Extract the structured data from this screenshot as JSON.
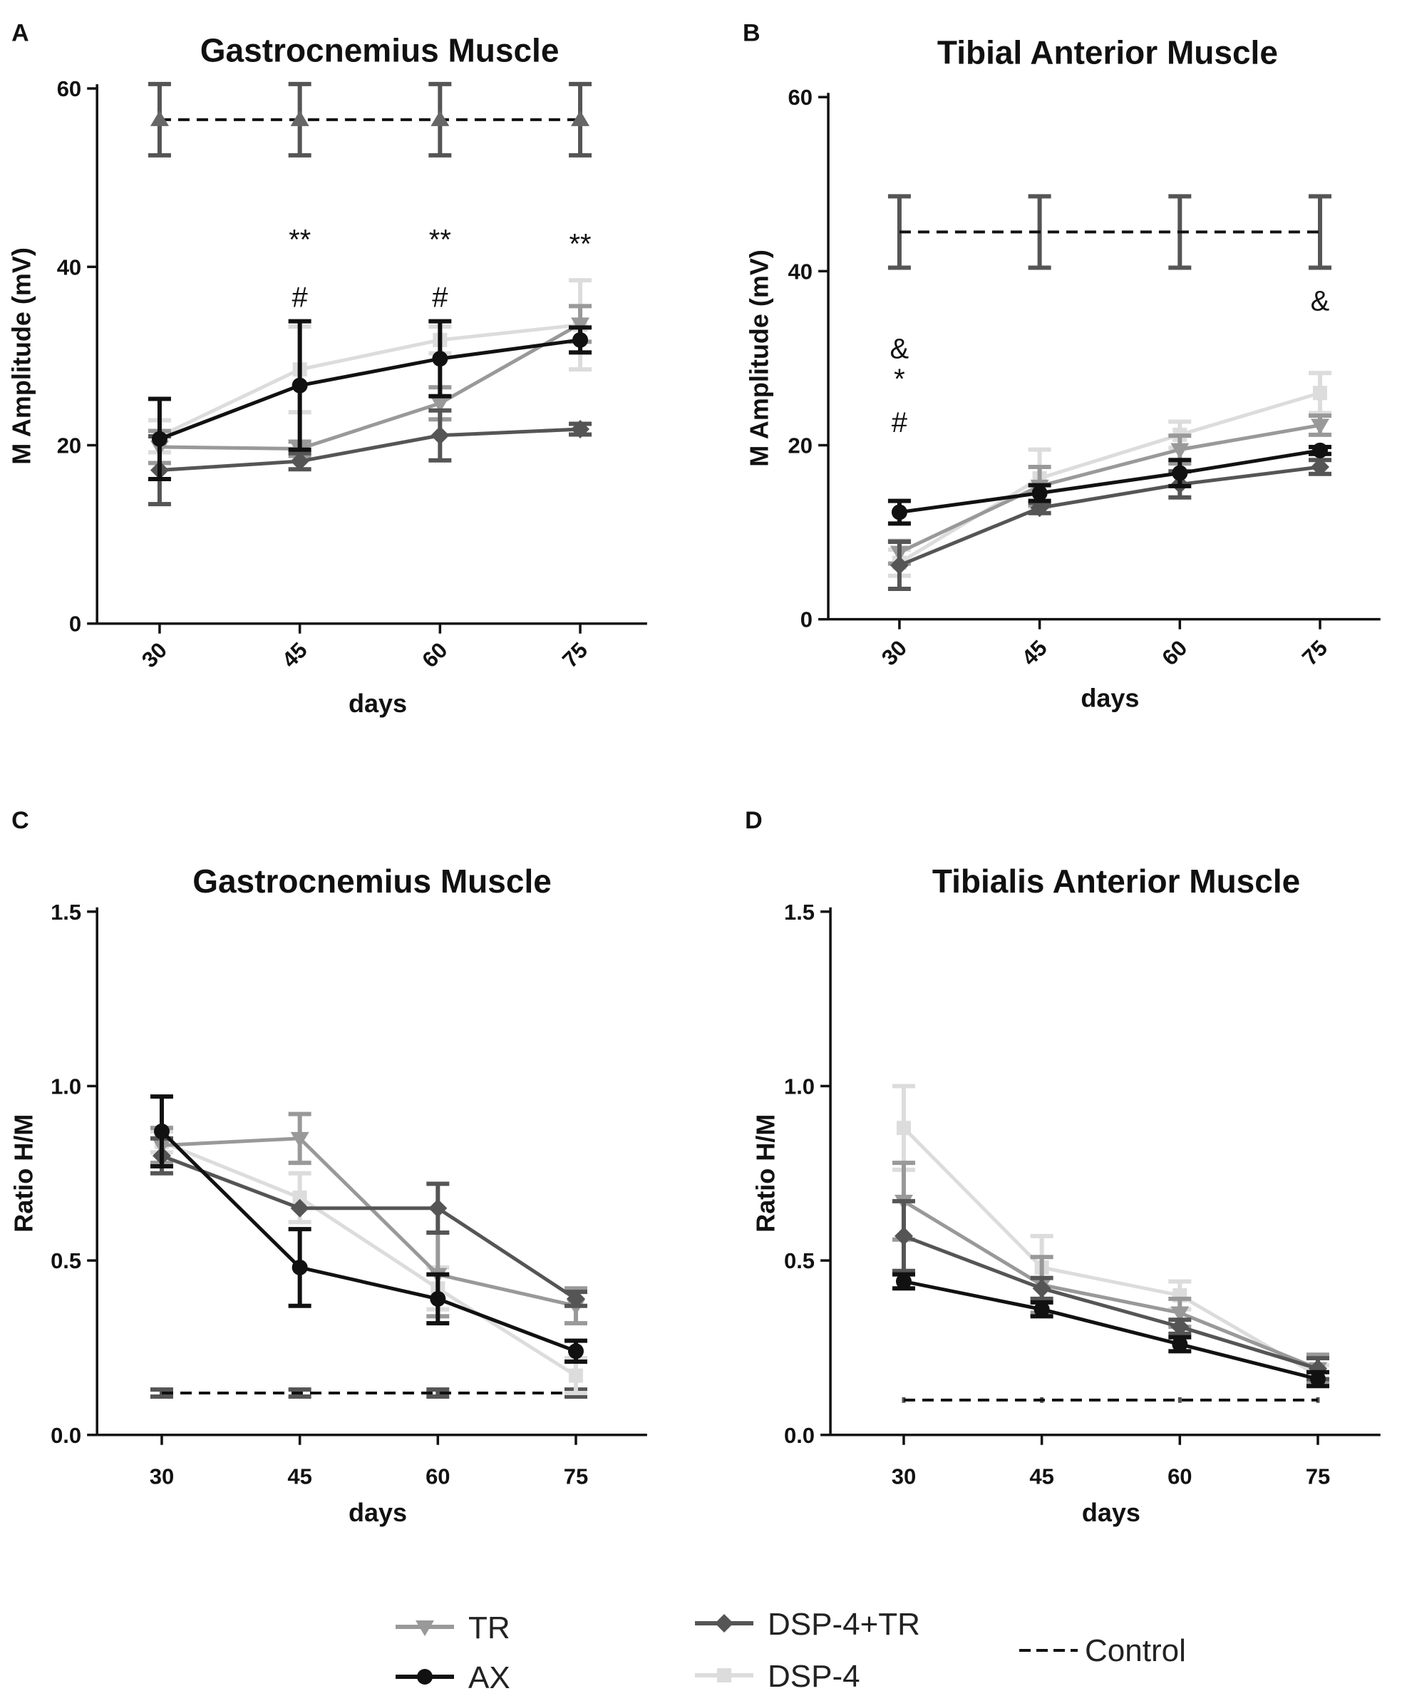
{
  "colors": {
    "TR": "#999999",
    "AX": "#111111",
    "DSP-4+TR": "#555555",
    "DSP-4": "#dcdcdc",
    "Control": "#111111"
  },
  "legend": {
    "items": [
      {
        "key": "TR",
        "label": "TR",
        "marker": "triangle-down",
        "style": "solid"
      },
      {
        "key": "AX",
        "label": "AX",
        "marker": "circle",
        "style": "solid"
      },
      {
        "key": "DSP-4+TR",
        "label": "DSP-4+TR",
        "marker": "diamond",
        "style": "solid"
      },
      {
        "key": "DSP-4",
        "label": "DSP-4",
        "marker": "square",
        "style": "solid"
      },
      {
        "key": "Control",
        "label": "Control",
        "marker": "none",
        "style": "dashed"
      }
    ]
  },
  "chart_data": [
    {
      "panel": "A",
      "type": "line",
      "title": "Gastrocnemius Muscle",
      "xlabel": "days",
      "ylabel": "M Amplitude (mV)",
      "x": [
        30,
        45,
        60,
        75
      ],
      "ylim": [
        0,
        60
      ],
      "yticks": [
        0,
        20,
        40,
        60
      ],
      "rotate_xticks": true,
      "series": [
        {
          "name": "Control",
          "values": [
            56.5,
            56.5,
            56.5,
            56.5
          ],
          "err": [
            4,
            4,
            4,
            4
          ],
          "marker": "triangle-up"
        },
        {
          "name": "DSP-4",
          "values": [
            21,
            28.5,
            31.8,
            33.5
          ],
          "err": [
            1.8,
            4.8,
            1.5,
            5
          ]
        },
        {
          "name": "TR",
          "values": [
            19.8,
            19.6,
            24.7,
            33.6
          ],
          "err": [
            1.8,
            0.8,
            1.8,
            2
          ]
        },
        {
          "name": "DSP-4+TR",
          "values": [
            17.2,
            18.2,
            21.1,
            21.8
          ],
          "err": [
            3.8,
            0.9,
            2.8,
            0.6
          ]
        },
        {
          "name": "AX",
          "values": [
            20.7,
            26.7,
            29.7,
            31.8
          ],
          "err": [
            4.5,
            7.2,
            4.2,
            1.4
          ]
        }
      ],
      "annotations": [
        {
          "x": 45,
          "y": 42,
          "text": "**"
        },
        {
          "x": 60,
          "y": 42,
          "text": "**"
        },
        {
          "x": 75,
          "y": 41.5,
          "text": "**"
        },
        {
          "x": 45,
          "y": 35.5,
          "text": "#"
        },
        {
          "x": 60,
          "y": 35.5,
          "text": "#"
        }
      ]
    },
    {
      "panel": "B",
      "type": "line",
      "title": "Tibial Anterior Muscle",
      "xlabel": "days",
      "ylabel": "M Amplitude (mV)",
      "x": [
        30,
        45,
        60,
        75
      ],
      "ylim": [
        0,
        60
      ],
      "yticks": [
        0,
        20,
        40,
        60
      ],
      "rotate_xticks": true,
      "series": [
        {
          "name": "Control",
          "values": [
            44.5,
            44.5,
            44.5,
            44.5
          ],
          "err": [
            4.1,
            4.1,
            4.1,
            4.1
          ],
          "marker": "none"
        },
        {
          "name": "DSP-4",
          "values": [
            6.5,
            16.2,
            21.2,
            26
          ],
          "err": [
            1.5,
            3.3,
            1.5,
            2.3
          ]
        },
        {
          "name": "TR",
          "values": [
            7.7,
            15.3,
            19.5,
            22.3
          ],
          "err": [
            1.3,
            2.2,
            1.6,
            1.1
          ]
        },
        {
          "name": "DSP-4+TR",
          "values": [
            6.2,
            12.8,
            15.5,
            17.5
          ],
          "err": [
            2.7,
            0.6,
            1.5,
            0.8
          ]
        },
        {
          "name": "AX",
          "values": [
            12.3,
            14.5,
            16.8,
            19.4
          ],
          "err": [
            1.3,
            0.9,
            1.5,
            0.4
          ]
        }
      ],
      "annotations": [
        {
          "x": 30,
          "y": 30,
          "text": "&"
        },
        {
          "x": 30,
          "y": 26.5,
          "text": "*"
        },
        {
          "x": 30,
          "y": 21.5,
          "text": "#"
        },
        {
          "x": 75,
          "y": 35.5,
          "text": "&"
        }
      ]
    },
    {
      "panel": "C",
      "type": "line",
      "title": "Gastrocnemius Muscle",
      "xlabel": "days",
      "ylabel": "Ratio H/M",
      "x": [
        30,
        45,
        60,
        75
      ],
      "ylim": [
        0,
        1.5
      ],
      "yticks": [
        0.0,
        0.5,
        1.0,
        1.5
      ],
      "yticklabels": [
        "0.0",
        "0.5",
        "1.0",
        "1.5"
      ],
      "rotate_xticks": false,
      "series": [
        {
          "name": "Control",
          "values": [
            0.12,
            0.12,
            0.12,
            0.12
          ],
          "err": [
            0.01,
            0.01,
            0.01,
            0.01
          ],
          "marker": "none"
        },
        {
          "name": "DSP-4",
          "values": [
            0.84,
            0.68,
            0.42,
            0.17
          ],
          "err": [
            0.03,
            0.07,
            0.06,
            0.05
          ]
        },
        {
          "name": "TR",
          "values": [
            0.83,
            0.85,
            0.46,
            0.37
          ],
          "err": [
            0.05,
            0.07,
            0.12,
            0.05
          ]
        },
        {
          "name": "DSP-4+TR",
          "values": [
            0.8,
            0.65,
            0.65,
            0.39
          ],
          "err": [
            0.05,
            0.0,
            0.07,
            0.02
          ]
        },
        {
          "name": "AX",
          "values": [
            0.87,
            0.48,
            0.39,
            0.24
          ],
          "err": [
            0.1,
            0.11,
            0.07,
            0.03
          ]
        }
      ],
      "annotations": []
    },
    {
      "panel": "D",
      "type": "line",
      "title": "Tibialis Anterior Muscle",
      "xlabel": "days",
      "ylabel": "Ratio H/M",
      "x": [
        30,
        45,
        60,
        75
      ],
      "ylim": [
        0,
        1.5
      ],
      "yticks": [
        0.0,
        0.5,
        1.0,
        1.5
      ],
      "yticklabels": [
        "0.0",
        "0.5",
        "1.0",
        "1.5"
      ],
      "rotate_xticks": false,
      "series": [
        {
          "name": "Control",
          "values": [
            0.1,
            0.1,
            0.1,
            0.1
          ],
          "err": [
            0.0,
            0.0,
            0.0,
            0.0
          ],
          "marker": "none"
        },
        {
          "name": "DSP-4",
          "values": [
            0.88,
            0.48,
            0.4,
            0.17
          ],
          "err": [
            0.12,
            0.09,
            0.04,
            0.03
          ]
        },
        {
          "name": "TR",
          "values": [
            0.67,
            0.43,
            0.35,
            0.19
          ],
          "err": [
            0.11,
            0.08,
            0.04,
            0.04
          ]
        },
        {
          "name": "DSP-4+TR",
          "values": [
            0.57,
            0.42,
            0.31,
            0.19
          ],
          "err": [
            0.1,
            0.03,
            0.02,
            0.03
          ]
        },
        {
          "name": "AX",
          "values": [
            0.44,
            0.36,
            0.26,
            0.16
          ],
          "err": [
            0.02,
            0.02,
            0.02,
            0.02
          ]
        }
      ],
      "annotations": []
    }
  ]
}
